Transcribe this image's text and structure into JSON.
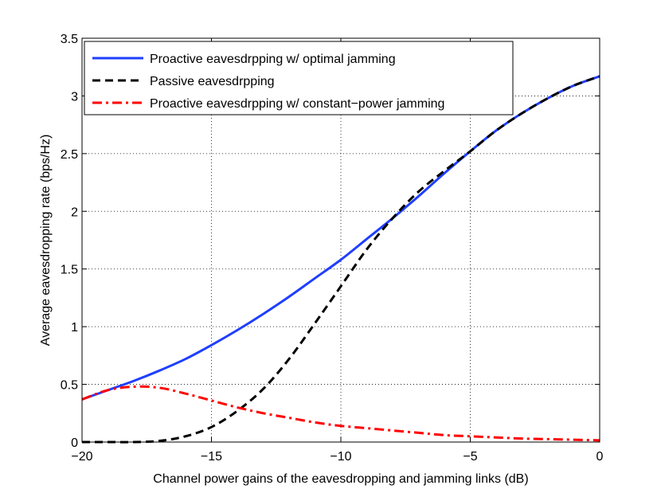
{
  "chart_data": {
    "type": "line",
    "title": "",
    "xlabel": "Channel power gains of the eavesdropping and jamming links (dB)",
    "ylabel": "Average eavesdropping rate (bps/Hz)",
    "xlim": [
      -20,
      0
    ],
    "ylim": [
      0,
      3.5
    ],
    "xticks": [
      -20,
      -15,
      -10,
      -5,
      0
    ],
    "yticks": [
      0,
      0.5,
      1,
      1.5,
      2,
      2.5,
      3,
      3.5
    ],
    "xtick_labels": [
      "−20",
      "−15",
      "−10",
      "−5",
      "0"
    ],
    "ytick_labels": [
      "0",
      "0.5",
      "1",
      "1.5",
      "2",
      "2.5",
      "3",
      "3.5"
    ],
    "grid": true,
    "legend_position": "top-left",
    "x": [
      -20,
      -19,
      -18,
      -17,
      -16,
      -15,
      -14,
      -13,
      -12,
      -11,
      -10,
      -9,
      -8,
      -7,
      -6,
      -5,
      -4,
      -3,
      -2,
      -1,
      0
    ],
    "series": [
      {
        "name": "Proactive eavesdrpping w/ optimal jamming",
        "color": "#1f3fff",
        "dash": "solid",
        "values": [
          0.37,
          0.45,
          0.53,
          0.62,
          0.72,
          0.84,
          0.97,
          1.11,
          1.26,
          1.42,
          1.58,
          1.76,
          1.94,
          2.13,
          2.33,
          2.52,
          2.7,
          2.85,
          2.98,
          3.09,
          3.17
        ]
      },
      {
        "name": "Passive eavesdrpping",
        "color": "#000000",
        "dash": "dashed",
        "values": [
          0.0,
          0.0,
          0.0,
          0.01,
          0.05,
          0.13,
          0.27,
          0.46,
          0.72,
          1.03,
          1.35,
          1.67,
          1.94,
          2.17,
          2.35,
          2.52,
          2.7,
          2.85,
          2.98,
          3.09,
          3.17
        ]
      },
      {
        "name": "Proactive eavesdrpping w/ constant−power jamming",
        "color": "#ff0000",
        "dash": "dashdot",
        "values": [
          0.37,
          0.45,
          0.48,
          0.47,
          0.42,
          0.36,
          0.3,
          0.25,
          0.21,
          0.17,
          0.14,
          0.12,
          0.1,
          0.08,
          0.06,
          0.05,
          0.04,
          0.03,
          0.025,
          0.02,
          0.015
        ]
      }
    ]
  }
}
